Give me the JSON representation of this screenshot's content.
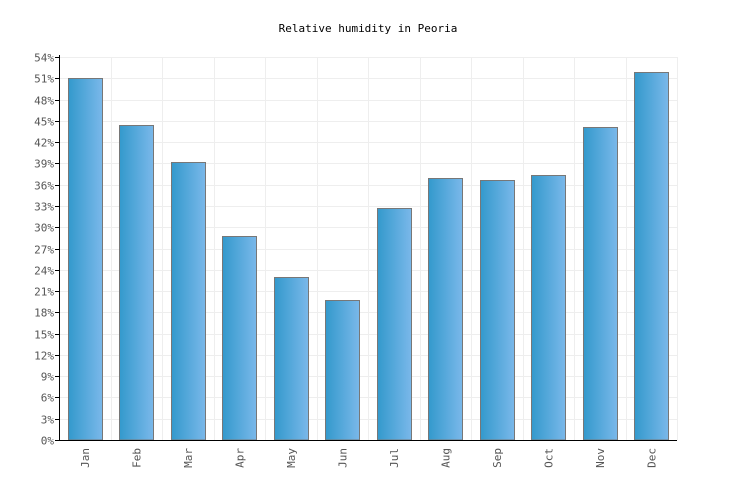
{
  "chart_data": {
    "type": "bar",
    "title": "Relative humidity in Peoria",
    "xlabel": "",
    "ylabel": "",
    "categories": [
      "Jan",
      "Feb",
      "Mar",
      "Apr",
      "May",
      "Jun",
      "Jul",
      "Aug",
      "Sep",
      "Oct",
      "Nov",
      "Dec"
    ],
    "values": [
      51.0,
      44.4,
      39.2,
      28.8,
      23.0,
      19.7,
      32.7,
      36.9,
      36.7,
      37.4,
      44.1,
      51.9
    ],
    "unit": "%",
    "ylim": [
      0,
      54
    ],
    "yticks": [
      0,
      3,
      6,
      9,
      12,
      15,
      18,
      21,
      24,
      27,
      30,
      33,
      36,
      39,
      42,
      45,
      48,
      51,
      54
    ],
    "grid": true,
    "colors": {
      "bar_start": "#3399cc",
      "bar_end": "#7ab8ea",
      "bar_border": "#777777"
    }
  }
}
